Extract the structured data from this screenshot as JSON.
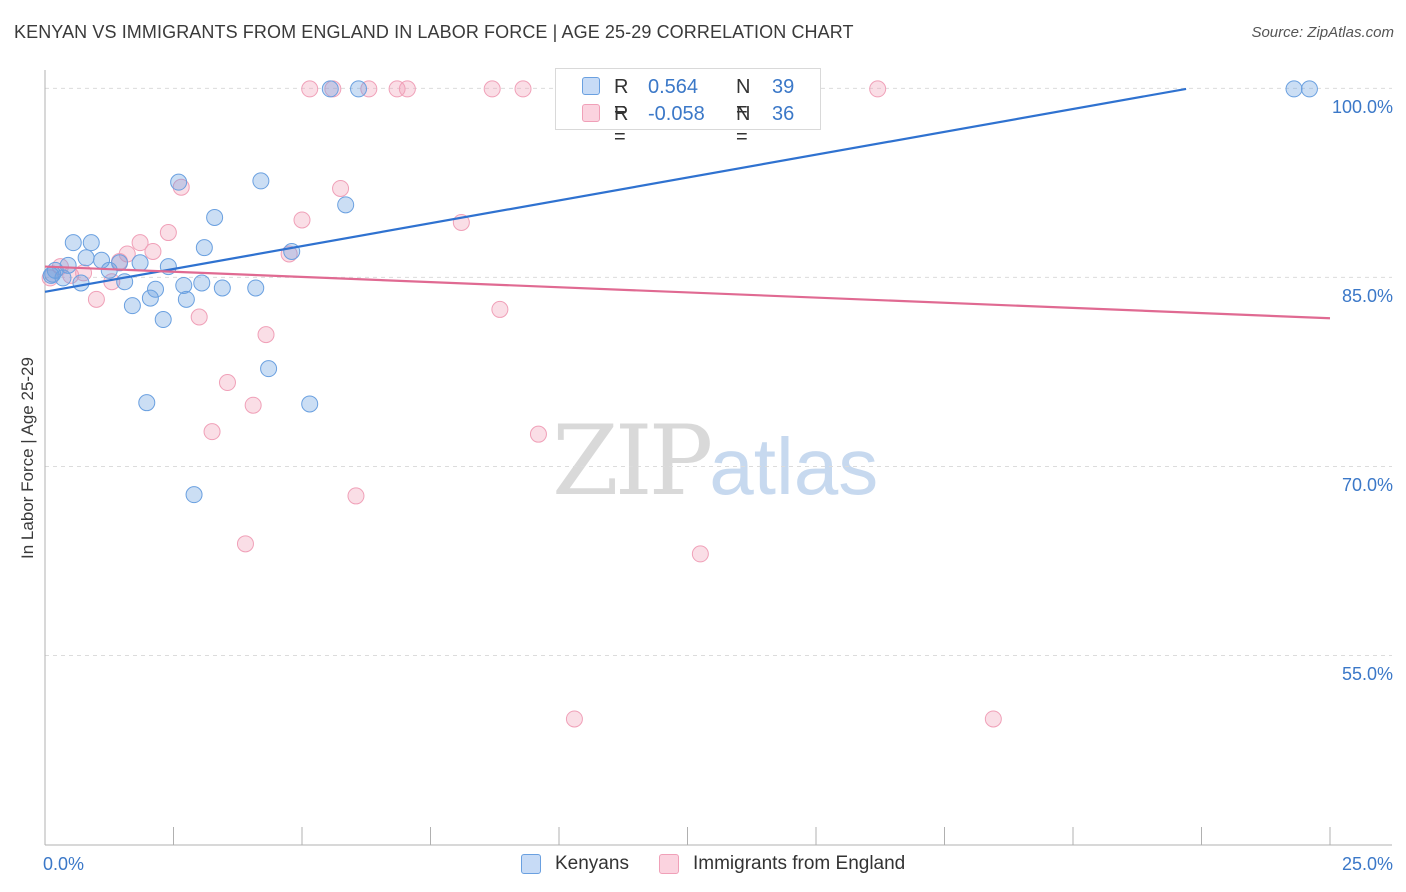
{
  "header": {
    "title": "KENYAN VS IMMIGRANTS FROM ENGLAND IN LABOR FORCE | AGE 25-29 CORRELATION CHART",
    "source": "Source: ZipAtlas.com"
  },
  "watermark": {
    "zip": "ZIP",
    "atlas": "atlas"
  },
  "stats": [
    {
      "r_label": "R =",
      "r_value": "0.564",
      "n_label": "N =",
      "n_value": "39",
      "color": "#6aa0e0"
    },
    {
      "r_label": "R =",
      "r_value": "-0.058",
      "n_label": "N =",
      "n_value": "36",
      "color": "#f0a0b8"
    }
  ],
  "legend": [
    {
      "label": "Kenyans",
      "color": "#6aa0e0"
    },
    {
      "label": "Immigrants from England",
      "color": "#f0a0b8"
    }
  ],
  "chart_data": {
    "type": "scatter",
    "title": "KENYAN VS IMMIGRANTS FROM ENGLAND IN LABOR FORCE | AGE 25-29 CORRELATION CHART",
    "xlabel": "",
    "ylabel": "In Labor Force | Age 25-29",
    "xlim": [
      0,
      25
    ],
    "ylim": [
      40,
      101.5
    ],
    "x_tick_labels": [
      {
        "value": 0,
        "label": "0.0%"
      },
      {
        "value": 25,
        "label": "25.0%"
      }
    ],
    "y_tick_labels": [
      {
        "value": 100,
        "label": "100.0%"
      },
      {
        "value": 85,
        "label": "85.0%"
      },
      {
        "value": 70,
        "label": "70.0%"
      },
      {
        "value": 55,
        "label": "55.0%"
      }
    ],
    "grid": "horizontal dashed",
    "legend_position": "bottom-center",
    "series": [
      {
        "name": "Kenyans",
        "color": "#6aa0e0",
        "points": [
          [
            0.15,
            85.3
          ],
          [
            0.2,
            85.6
          ],
          [
            0.35,
            85.0
          ],
          [
            0.45,
            86.0
          ],
          [
            0.55,
            87.8
          ],
          [
            0.7,
            84.6
          ],
          [
            0.8,
            86.6
          ],
          [
            0.9,
            87.8
          ],
          [
            1.1,
            86.4
          ],
          [
            1.25,
            85.6
          ],
          [
            1.45,
            86.2
          ],
          [
            1.55,
            84.7
          ],
          [
            1.7,
            82.8
          ],
          [
            1.85,
            86.2
          ],
          [
            1.98,
            75.1
          ],
          [
            2.05,
            83.4
          ],
          [
            2.15,
            84.1
          ],
          [
            2.3,
            81.7
          ],
          [
            2.4,
            85.9
          ],
          [
            2.6,
            92.6
          ],
          [
            2.7,
            84.4
          ],
          [
            2.75,
            83.3
          ],
          [
            2.9,
            67.8
          ],
          [
            3.05,
            84.6
          ],
          [
            3.1,
            87.4
          ],
          [
            3.3,
            89.8
          ],
          [
            3.45,
            84.2
          ],
          [
            4.1,
            84.2
          ],
          [
            4.2,
            92.7
          ],
          [
            4.35,
            77.8
          ],
          [
            4.8,
            87.1
          ],
          [
            5.15,
            75.0
          ],
          [
            5.55,
            100.0
          ],
          [
            5.85,
            90.8
          ],
          [
            6.1,
            100.0
          ],
          [
            10.3,
            100.0
          ],
          [
            24.3,
            100.0
          ],
          [
            24.6,
            100.0
          ],
          [
            0.12,
            85.2
          ]
        ]
      },
      {
        "name": "Immigrants from England",
        "color": "#f0a0b8",
        "points": [
          [
            0.1,
            85.0
          ],
          [
            0.3,
            85.9
          ],
          [
            0.5,
            85.2
          ],
          [
            0.75,
            85.4
          ],
          [
            1.0,
            83.3
          ],
          [
            1.3,
            84.7
          ],
          [
            1.45,
            86.3
          ],
          [
            1.6,
            86.9
          ],
          [
            1.85,
            87.8
          ],
          [
            2.1,
            87.1
          ],
          [
            2.4,
            88.6
          ],
          [
            2.65,
            92.2
          ],
          [
            3.0,
            81.9
          ],
          [
            3.25,
            72.8
          ],
          [
            3.55,
            76.7
          ],
          [
            3.9,
            63.9
          ],
          [
            4.05,
            74.9
          ],
          [
            4.3,
            80.5
          ],
          [
            4.75,
            86.9
          ],
          [
            5.0,
            89.6
          ],
          [
            5.15,
            100.0
          ],
          [
            5.6,
            100.0
          ],
          [
            5.75,
            92.1
          ],
          [
            6.05,
            67.7
          ],
          [
            6.3,
            100.0
          ],
          [
            6.85,
            100.0
          ],
          [
            7.05,
            100.0
          ],
          [
            8.1,
            89.4
          ],
          [
            8.7,
            100.0
          ],
          [
            8.85,
            82.5
          ],
          [
            9.3,
            100.0
          ],
          [
            9.6,
            72.6
          ],
          [
            10.3,
            50.0
          ],
          [
            12.75,
            63.1
          ],
          [
            16.2,
            100.0
          ],
          [
            18.45,
            50.0
          ]
        ]
      }
    ],
    "trend_lines": [
      {
        "series": "Kenyans",
        "x": [
          0,
          22.2
        ],
        "y": [
          83.9,
          100.0
        ],
        "color": "#2f72d0"
      },
      {
        "series": "Immigrants from England",
        "x": [
          0,
          25
        ],
        "y": [
          85.9,
          81.8
        ],
        "color": "#e06a92"
      }
    ]
  }
}
